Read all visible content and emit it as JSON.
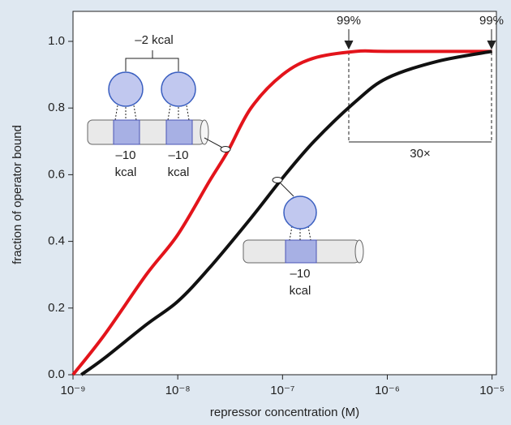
{
  "chart_data": {
    "type": "line",
    "xlabel": "repressor concentration (M)",
    "ylabel": "fraction of operator bound",
    "xscale": "log",
    "xlim": [
      1e-09,
      1.1e-05
    ],
    "xticks": [
      {
        "value": 1e-09,
        "label": "10⁻⁹"
      },
      {
        "value": 1e-08,
        "label": "10⁻⁸"
      },
      {
        "value": 1e-07,
        "label": "10⁻⁷"
      },
      {
        "value": 1e-06,
        "label": "10⁻⁶"
      },
      {
        "value": 1e-05,
        "label": "10⁻⁵"
      }
    ],
    "ylim": [
      0,
      1.09
    ],
    "yticks": [
      {
        "value": 0,
        "label": "0.0"
      },
      0.2,
      0.4,
      0.6,
      0.8,
      {
        "value": 1,
        "label": "1.0"
      }
    ],
    "series": [
      {
        "color": "#e3141b",
        "x": [
          1e-09,
          2e-09,
          5e-09,
          1e-08,
          2e-08,
          3e-08,
          5e-08,
          1e-07,
          2e-07,
          5e-07,
          1e-06,
          1e-05
        ],
        "values": [
          0,
          0.12,
          0.3,
          0.42,
          0.58,
          0.67,
          0.8,
          0.9,
          0.95,
          0.97,
          0.97,
          0.97
        ]
      },
      {
        "color": "#111111",
        "x": [
          1.2e-09,
          2e-09,
          5e-09,
          1e-08,
          2e-08,
          5e-08,
          1e-07,
          2e-07,
          5e-07,
          1e-06,
          3e-06,
          1e-05
        ],
        "values": [
          0,
          0.05,
          0.15,
          0.22,
          0.32,
          0.47,
          0.59,
          0.7,
          0.82,
          0.89,
          0.94,
          0.97
        ]
      }
    ],
    "annotations": {
      "left_marker": "99%",
      "right_marker": "99%",
      "ratio": "30×",
      "cooperative": "–2 kcal",
      "site1_value": "–10",
      "site1_unit": "kcal",
      "site2_value": "–10",
      "site2_unit": "kcal",
      "single_value": "–10",
      "single_unit": "kcal"
    }
  }
}
